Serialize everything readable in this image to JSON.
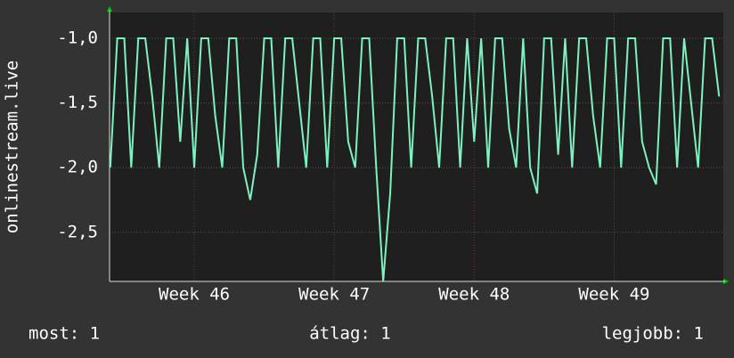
{
  "chart_data": {
    "type": "line",
    "y_label": "onlinestream.live",
    "x": [
      45.4,
      45.45,
      45.5,
      45.55,
      45.6,
      45.65,
      45.7,
      45.75,
      45.8,
      45.85,
      45.9,
      45.95,
      46,
      46.05,
      46.1,
      46.15,
      46.2,
      46.25,
      46.3,
      46.35,
      46.4,
      46.45,
      46.5,
      46.55,
      46.6,
      46.65,
      46.7,
      46.75,
      46.8,
      46.85,
      46.9,
      46.95,
      47,
      47.05,
      47.1,
      47.15,
      47.2,
      47.25,
      47.3,
      47.35,
      47.4,
      47.45,
      47.5,
      47.55,
      47.6,
      47.65,
      47.7,
      47.75,
      47.8,
      47.85,
      47.9,
      47.95,
      48,
      48.05,
      48.1,
      48.15,
      48.2,
      48.25,
      48.3,
      48.35,
      48.4,
      48.45,
      48.5,
      48.55,
      48.6,
      48.65,
      48.7,
      48.75,
      48.8,
      48.85,
      48.9,
      48.95,
      49,
      49.05,
      49.1,
      49.15,
      49.2,
      49.25,
      49.3,
      49.35,
      49.4,
      49.45,
      49.5,
      49.55,
      49.6,
      49.65,
      49.7,
      49.75
    ],
    "series": [
      {
        "color": "#7cf2be",
        "values": [
          -2,
          -1,
          -1,
          -2,
          -1,
          -1,
          -1.45,
          -2,
          -1,
          -1,
          -1.8,
          -1,
          -2,
          -1,
          -1,
          -1.6,
          -2,
          -1,
          -1,
          -2,
          -2.25,
          -1.9,
          -1,
          -1,
          -2,
          -1,
          -1,
          -1.5,
          -2,
          -1,
          -1,
          -2,
          -1,
          -1,
          -1.8,
          -2,
          -1,
          -1,
          -2,
          -2.88,
          -2.2,
          -1,
          -1,
          -2,
          -1,
          -1,
          -1.45,
          -2,
          -1,
          -1,
          -2,
          -1,
          -1.8,
          -1,
          -2,
          -1,
          -1,
          -1.7,
          -2,
          -1,
          -2,
          -2.2,
          -1,
          -1,
          -1.9,
          -1,
          -2,
          -1,
          -1,
          -1.6,
          -2,
          -1,
          -1,
          -2,
          -1,
          -1,
          -1.8,
          -2,
          -2.13,
          -1,
          -1,
          -2,
          -1,
          -1.5,
          -2,
          -1,
          -1,
          -1.45
        ]
      }
    ],
    "xlim": [
      45.395,
      49.78
    ],
    "xticks": [
      {
        "value": 46,
        "label": "Week 46"
      },
      {
        "value": 47,
        "label": "Week 47"
      },
      {
        "value": 48,
        "label": "Week 48"
      },
      {
        "value": 49,
        "label": "Week 49"
      }
    ],
    "ylim": [
      -2.88,
      -0.8
    ],
    "yticks": [
      {
        "value": -1,
        "label": "-1,0"
      },
      {
        "value": -1.5,
        "label": "-1,5"
      },
      {
        "value": -2,
        "label": "-2,0"
      },
      {
        "value": -2.5,
        "label": "-2,5"
      }
    ],
    "grid": true,
    "footer": [
      "most: 1",
      "átlag: 1",
      "legjobb: 1"
    ]
  }
}
